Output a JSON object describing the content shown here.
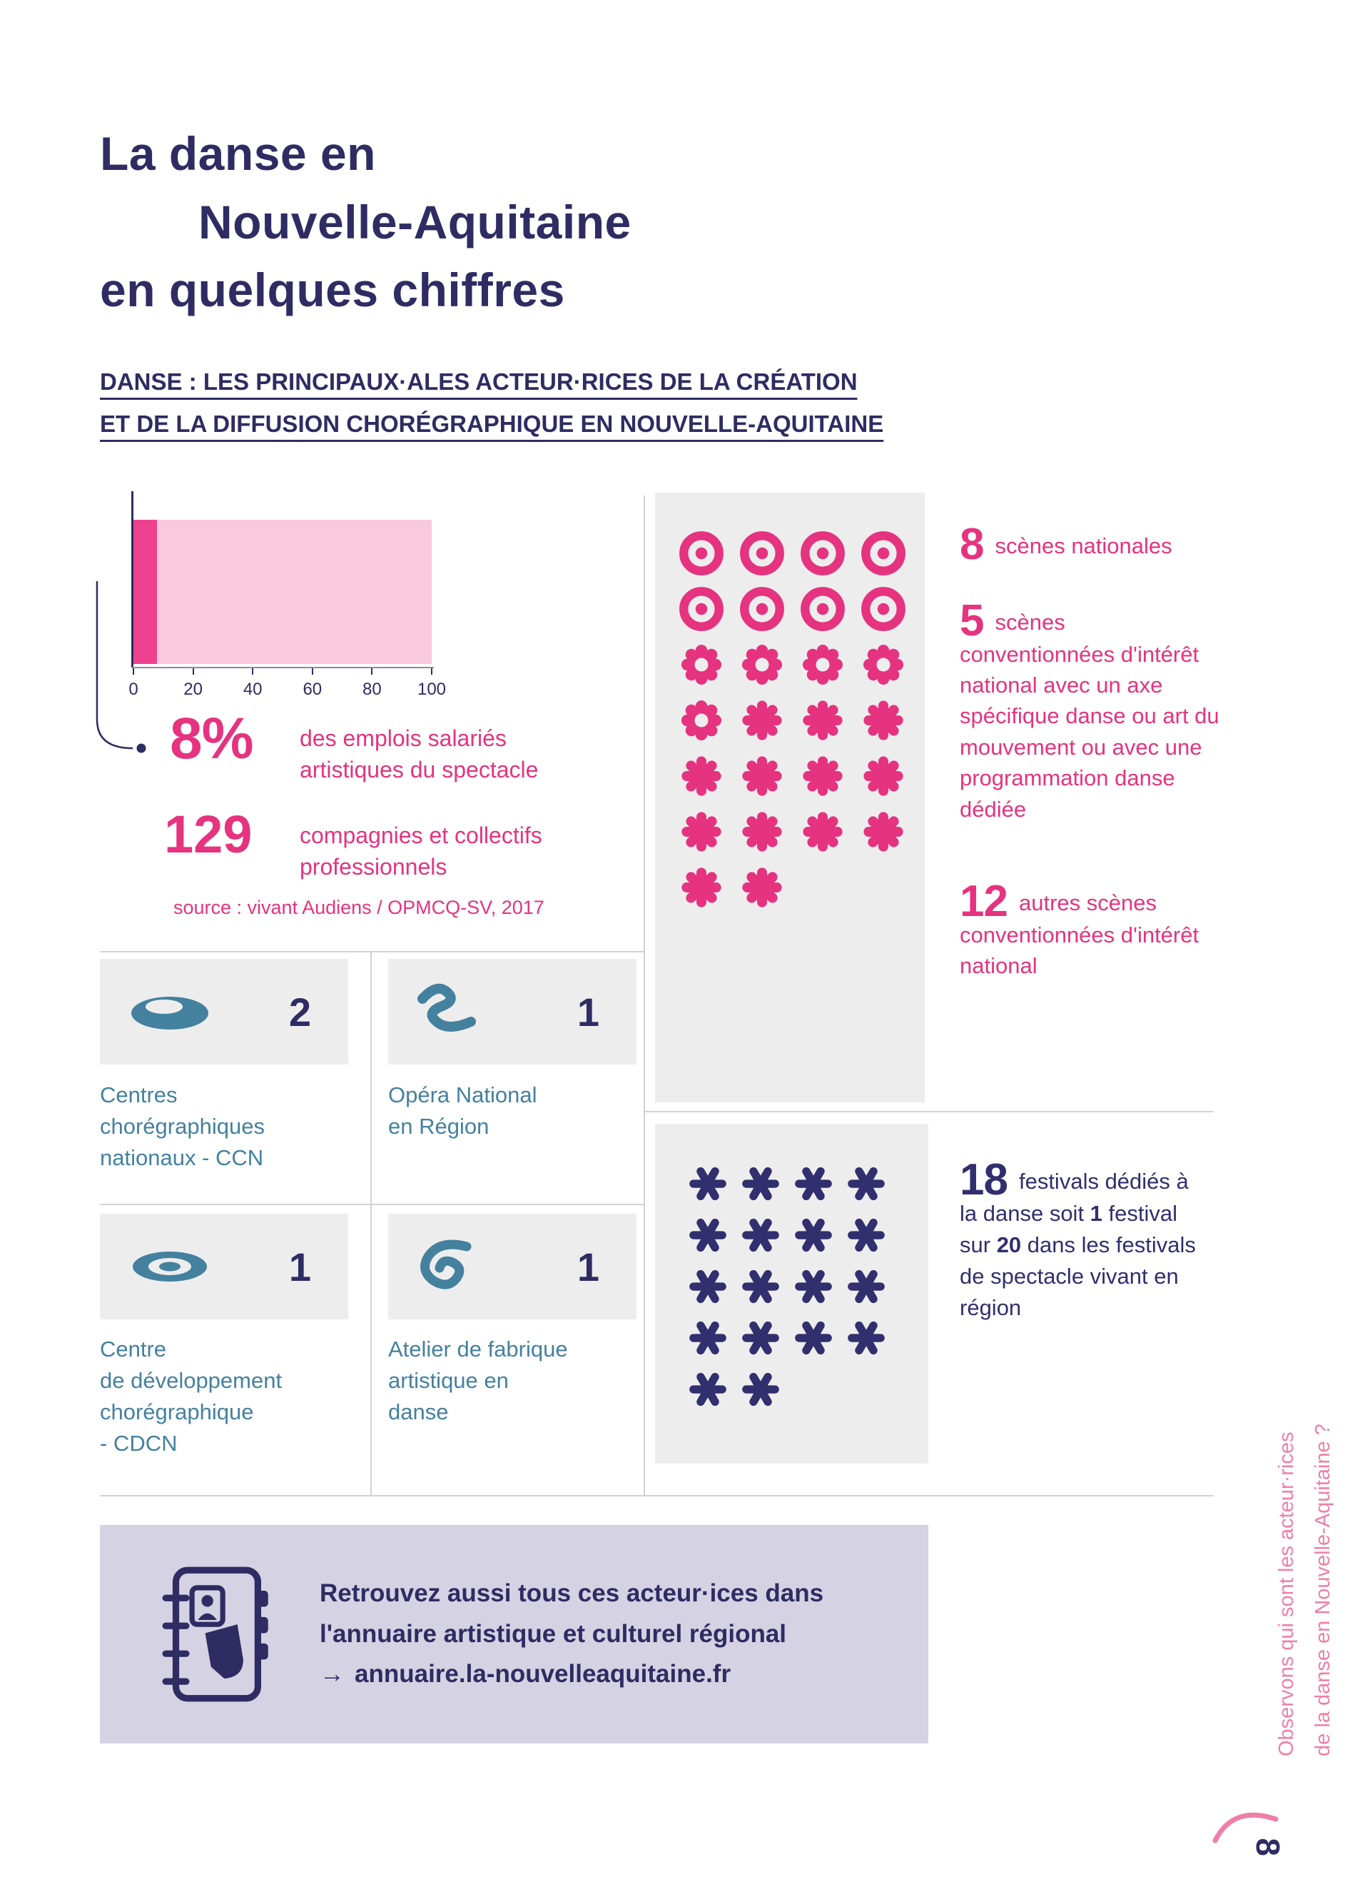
{
  "title": {
    "lines": [
      "La danse en",
      "Nouvelle-Aquitaine",
      "en quelques chiffres"
    ]
  },
  "subtitle": {
    "lines": [
      "DANSE : LES PRINCIPAUX·ALES ACTEUR·RICES DE LA CRÉATION",
      "ET DE LA DIFFUSION CHORÉGRAPHIQUE EN NOUVELLE-AQUITAINE"
    ]
  },
  "chart_data": {
    "type": "bar",
    "orientation": "horizontal",
    "categories": [
      "part des emplois salariés artistiques du spectacle"
    ],
    "values": [
      8
    ],
    "xlim": [
      0,
      100
    ],
    "xticks": [
      0,
      20,
      40,
      60,
      80,
      100
    ],
    "title": "",
    "xlabel": "",
    "ylabel": "",
    "annotation": "8%",
    "bar_color": "#ee4190",
    "background_bar_color": "#f9c9dc"
  },
  "stats": {
    "pct": {
      "value": "8%",
      "label_lines": [
        "des emplois salariés",
        "artistiques du spectacle"
      ]
    },
    "companies": {
      "value": "129",
      "label_lines": [
        "compagnies et collectifs",
        "professionnels"
      ]
    },
    "source": "source : vivant Audiens / OPMCQ-SV, 2017"
  },
  "scenes": {
    "items": [
      {
        "value": "8",
        "text": "scènes nationales"
      },
      {
        "value": "5",
        "text": "scènes conventionnées d'intérêt national avec un axe spécifique danse ou art du mouvement ou avec une programmation danse dédiée"
      },
      {
        "value": "12",
        "text": "autres scènes conventionnées d'intérêt national"
      }
    ],
    "icon_rows": [
      [
        "donut",
        "donut",
        "donut",
        "donut"
      ],
      [
        "donut",
        "donut",
        "donut",
        "donut"
      ],
      [
        "scallop",
        "scallop",
        "scallop",
        "scallop"
      ],
      [
        "scallop",
        "burst",
        "burst",
        "burst"
      ],
      [
        "burst",
        "burst",
        "burst",
        "burst"
      ],
      [
        "burst",
        "burst",
        "burst",
        "burst"
      ],
      [
        "burst",
        "burst"
      ]
    ]
  },
  "structures": [
    {
      "value": "2",
      "label_lines": [
        "Centres",
        "chorégraphiques",
        "nationaux - CCN"
      ]
    },
    {
      "value": "1",
      "label_lines": [
        "Opéra National",
        "en Région"
      ]
    },
    {
      "value": "1",
      "label_lines": [
        "Centre",
        "de développement",
        "chorégraphique",
        "- CDCN"
      ]
    },
    {
      "value": "1",
      "label_lines": [
        "Atelier de fabrique",
        "artistique en",
        "danse"
      ]
    }
  ],
  "festivals": {
    "value": "18",
    "seg1": "festivals dédiés à la danse soit ",
    "num1": "1",
    "seg2": " festival sur ",
    "num2": "20",
    "seg3": " dans les festivals de spectacle vivant en région",
    "icon_rows": [
      [
        "aster",
        "aster",
        "aster",
        "aster"
      ],
      [
        "aster",
        "aster",
        "aster",
        "aster"
      ],
      [
        "aster",
        "aster",
        "aster",
        "aster"
      ],
      [
        "aster",
        "aster",
        "aster",
        "aster"
      ],
      [
        "aster",
        "aster"
      ]
    ]
  },
  "directory": {
    "lines": [
      "Retrouvez aussi tous ces acteur·ices dans",
      "l'annuaire artistique et culturel régional"
    ],
    "arrow": "→",
    "link": "annuaire.la-nouvelleaquitaine.fr"
  },
  "sidebar_note": {
    "lines": [
      "Observons qui sont les acteur·rices",
      "de la danse en Nouvelle-Aquitaine ?"
    ]
  },
  "page": {
    "number": "8"
  },
  "colors": {
    "navy": "#2e2c62",
    "festival_navy": "#312f6d",
    "pink": "#e5337f",
    "bar_pink": "#ee4190",
    "light_pink": "#f9c9dc",
    "teal": "#44819e",
    "panel_grey": "#ededee",
    "lavender": "#d5d2e3"
  }
}
